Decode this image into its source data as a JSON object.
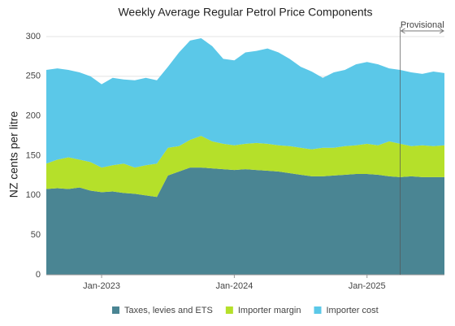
{
  "chart_data": {
    "type": "stacked-area",
    "title": "Weekly Average Regular Petrol Price Components",
    "y_label": "NZ cents per litre",
    "x": [
      "2022-08",
      "2022-09",
      "2022-10",
      "2022-11",
      "2022-12",
      "2023-01",
      "2023-02",
      "2023-03",
      "2023-04",
      "2023-05",
      "2023-06",
      "2023-07",
      "2023-08",
      "2023-09",
      "2023-10",
      "2023-11",
      "2023-12",
      "2024-01",
      "2024-02",
      "2024-03",
      "2024-04",
      "2024-05",
      "2024-06",
      "2024-07",
      "2024-08",
      "2024-09",
      "2024-10",
      "2024-11",
      "2024-12",
      "2025-01",
      "2025-02",
      "2025-03",
      "2025-04",
      "2025-05",
      "2025-06",
      "2025-07",
      "2025-08"
    ],
    "xlim": [
      "2022-08",
      "2025-08"
    ],
    "xticks": [
      {
        "value": "2023-01",
        "label": "Jan-2023"
      },
      {
        "value": "2024-01",
        "label": "Jan-2024"
      },
      {
        "value": "2025-01",
        "label": "Jan-2025"
      }
    ],
    "ylim": [
      0,
      300
    ],
    "yticks": [
      0,
      50,
      100,
      150,
      200,
      250,
      300
    ],
    "grid": true,
    "legend": "bottom",
    "provisional": {
      "label": "Provisional",
      "start": "2025-04"
    },
    "series": [
      {
        "name": "Taxes, levies and ETS",
        "color": "#4a8593",
        "values": [
          108,
          109,
          108,
          110,
          106,
          104,
          105,
          103,
          102,
          100,
          98,
          125,
          130,
          135,
          135,
          134,
          133,
          132,
          133,
          132,
          131,
          130,
          128,
          126,
          124,
          124,
          125,
          126,
          127,
          127,
          126,
          124,
          123,
          124,
          123,
          123,
          123
        ]
      },
      {
        "name": "Importer margin",
        "color": "#b5e02a",
        "values": [
          32,
          36,
          40,
          35,
          36,
          31,
          33,
          37,
          33,
          38,
          42,
          35,
          32,
          35,
          40,
          34,
          32,
          31,
          32,
          34,
          34,
          33,
          34,
          34,
          34,
          36,
          35,
          36,
          36,
          38,
          37,
          44,
          42,
          38,
          40,
          39,
          40
        ]
      },
      {
        "name": "Importer cost",
        "color": "#5bc8e8",
        "values": [
          118,
          115,
          110,
          110,
          108,
          105,
          110,
          106,
          110,
          110,
          105,
          102,
          118,
          125,
          123,
          120,
          107,
          107,
          115,
          116,
          120,
          117,
          110,
          102,
          98,
          88,
          95,
          96,
          102,
          103,
          102,
          92,
          93,
          93,
          90,
          94,
          91
        ]
      }
    ]
  }
}
